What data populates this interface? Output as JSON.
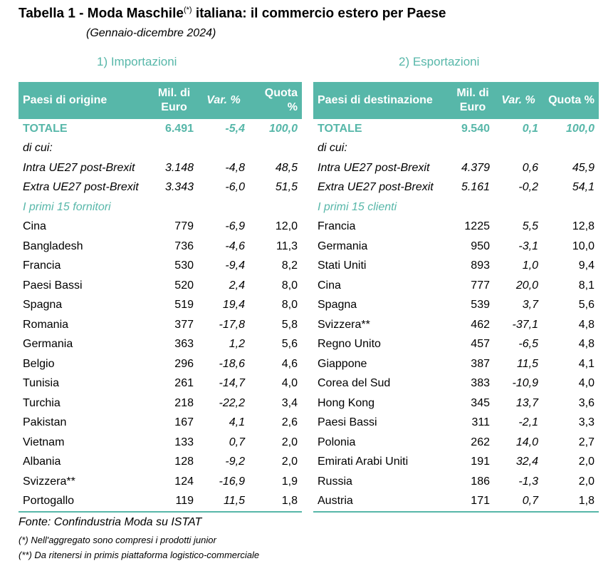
{
  "header": {
    "title_main": "Tabella 1 - Moda Maschile",
    "title_sup": "(*)",
    "title_rest": " italiana: il commercio estero per Paese",
    "subtitle": "(Gennaio-dicembre 2024)"
  },
  "colors": {
    "accent": "#57b7a9"
  },
  "imports": {
    "section_title": "1) Importazioni",
    "headers": [
      "Paesi di origine",
      "Mil. di Euro",
      "Var. %",
      "Quota %"
    ],
    "totale": [
      "TOTALE",
      "6.491",
      "-5,4",
      "100,0"
    ],
    "di_cui": "di cui:",
    "intra": [
      "Intra UE27 post-Brexit",
      "3.148",
      "-4,8",
      "48,5"
    ],
    "extra": [
      "Extra UE27 post-Brexit",
      "3.343",
      "-6,0",
      "51,5"
    ],
    "group_label": "I primi 15 fornitori",
    "rows": [
      [
        "Cina",
        "779",
        "-6,9",
        "12,0"
      ],
      [
        "Bangladesh",
        "736",
        "-4,6",
        "11,3"
      ],
      [
        "Francia",
        "530",
        "-9,4",
        "8,2"
      ],
      [
        "Paesi Bassi",
        "520",
        "2,4",
        "8,0"
      ],
      [
        "Spagna",
        "519",
        "19,4",
        "8,0"
      ],
      [
        "Romania",
        "377",
        "-17,8",
        "5,8"
      ],
      [
        "Germania",
        "363",
        "1,2",
        "5,6"
      ],
      [
        "Belgio",
        "296",
        "-18,6",
        "4,6"
      ],
      [
        "Tunisia",
        "261",
        "-14,7",
        "4,0"
      ],
      [
        "Turchia",
        "218",
        "-22,2",
        "3,4"
      ],
      [
        "Pakistan",
        "167",
        "4,1",
        "2,6"
      ],
      [
        "Vietnam",
        "133",
        "0,7",
        "2,0"
      ],
      [
        "Albania",
        "128",
        "-9,2",
        "2,0"
      ],
      [
        "Svizzera**",
        "124",
        "-16,9",
        "1,9"
      ],
      [
        "Portogallo",
        "119",
        "11,5",
        "1,8"
      ]
    ]
  },
  "exports": {
    "section_title": "2) Esportazioni",
    "headers": [
      "Paesi di destinazione",
      "Mil. di Euro",
      "Var. %",
      "Quota %"
    ],
    "totale": [
      "TOTALE",
      "9.540",
      "0,1",
      "100,0"
    ],
    "di_cui": "di cui:",
    "intra": [
      "Intra UE27 post-Brexit",
      "4.379",
      "0,6",
      "45,9"
    ],
    "extra": [
      "Extra UE27 post-Brexit",
      "5.161",
      "-0,2",
      "54,1"
    ],
    "group_label": "I primi 15 clienti",
    "rows": [
      [
        "Francia",
        "1225",
        "5,5",
        "12,8"
      ],
      [
        "Germania",
        "950",
        "-3,1",
        "10,0"
      ],
      [
        "Stati Uniti",
        "893",
        "1,0",
        "9,4"
      ],
      [
        "Cina",
        "777",
        "20,0",
        "8,1"
      ],
      [
        "Spagna",
        "539",
        "3,7",
        "5,6"
      ],
      [
        "Svizzera**",
        "462",
        "-37,1",
        "4,8"
      ],
      [
        "Regno Unito",
        "457",
        "-6,5",
        "4,8"
      ],
      [
        "Giappone",
        "387",
        "11,5",
        "4,1"
      ],
      [
        "Corea del Sud",
        "383",
        "-10,9",
        "4,0"
      ],
      [
        "Hong Kong",
        "345",
        "13,7",
        "3,6"
      ],
      [
        "Paesi Bassi",
        "311",
        "-2,1",
        "3,3"
      ],
      [
        "Polonia",
        "262",
        "14,0",
        "2,7"
      ],
      [
        "Emirati Arabi Uniti",
        "191",
        "32,4",
        "2,0"
      ],
      [
        "Russia",
        "186",
        "-1,3",
        "2,0"
      ],
      [
        "Austria",
        "171",
        "0,7",
        "1,8"
      ]
    ]
  },
  "footer": {
    "source": "Fonte:  Confindustria Moda su ISTAT",
    "note1": "(*) Nell'aggregato sono compresi i prodotti junior",
    "note2": "(**) Da ritenersi in primis piattaforma logistico-commerciale"
  }
}
